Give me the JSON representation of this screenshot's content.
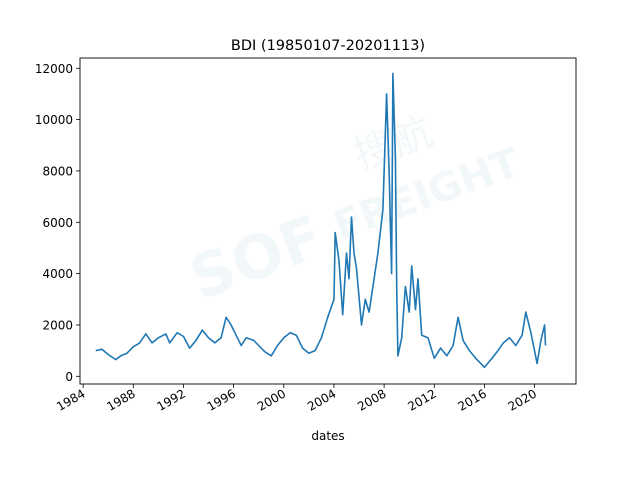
{
  "chart_data": {
    "type": "line",
    "title": "BDI (19850107-20201113)",
    "xlabel": "dates",
    "ylabel": "",
    "xlim": [
      1983.75,
      2023.3
    ],
    "ylim": [
      -300,
      12400
    ],
    "x_ticks": [
      1984,
      1988,
      1992,
      1996,
      2000,
      2004,
      2008,
      2012,
      2016,
      2020
    ],
    "x_tick_labels": [
      "1984",
      "1988",
      "1992",
      "1996",
      "2000",
      "2004",
      "2008",
      "2012",
      "2016",
      "2020"
    ],
    "y_ticks": [
      0,
      2000,
      4000,
      6000,
      8000,
      10000,
      12000
    ],
    "y_tick_labels": [
      "0",
      "2000",
      "4000",
      "6000",
      "8000",
      "10000",
      "12000"
    ],
    "grid": false,
    "color": "#1f77b4",
    "watermark": "SOF 搜航 FREIGHT",
    "series": [
      {
        "x": [
          1985.0,
          1985.5,
          1986.0,
          1986.6,
          1987.0,
          1987.5,
          1988.0,
          1988.5,
          1989.0,
          1989.5,
          1990.0,
          1990.6,
          1990.9,
          1991.5,
          1992.0,
          1992.5,
          1993.0,
          1993.5,
          1994.0,
          1994.5,
          1995.0,
          1995.4,
          1995.8,
          1996.2,
          1996.6,
          1997.0,
          1997.6,
          1998.0,
          1998.5,
          1999.0,
          1999.5,
          2000.0,
          2000.5,
          2001.0,
          2001.5,
          2002.0,
          2002.5,
          2003.0,
          2003.5,
          2004.0,
          2004.1,
          2004.4,
          2004.7,
          2005.0,
          2005.2,
          2005.4,
          2005.6,
          2005.8,
          2006.2,
          2006.5,
          2006.8,
          2007.2,
          2007.5,
          2007.9,
          2008.2,
          2008.4,
          2008.6,
          2008.7,
          2008.9,
          2009.0,
          2009.1,
          2009.4,
          2009.7,
          2010.0,
          2010.2,
          2010.5,
          2010.7,
          2011.0,
          2011.5,
          2012.0,
          2012.5,
          2013.0,
          2013.5,
          2013.9,
          2014.3,
          2014.8,
          2015.3,
          2016.0,
          2016.6,
          2017.0,
          2017.5,
          2018.0,
          2018.5,
          2019.0,
          2019.3,
          2019.7,
          2020.2,
          2020.5,
          2020.8,
          2020.87
        ],
        "values": [
          1000,
          1050,
          850,
          650,
          800,
          900,
          1150,
          1300,
          1650,
          1300,
          1500,
          1650,
          1300,
          1700,
          1550,
          1100,
          1400,
          1800,
          1500,
          1300,
          1500,
          2300,
          2000,
          1600,
          1200,
          1500,
          1400,
          1200,
          950,
          800,
          1200,
          1500,
          1700,
          1600,
          1100,
          900,
          1000,
          1500,
          2300,
          3000,
          5600,
          4500,
          2400,
          4800,
          3800,
          6200,
          4800,
          4200,
          2000,
          3000,
          2500,
          3800,
          4800,
          6500,
          11000,
          8000,
          4000,
          11800,
          8500,
          3500,
          800,
          1500,
          3500,
          2500,
          4300,
          2600,
          3800,
          1600,
          1500,
          700,
          1100,
          800,
          1200,
          2300,
          1400,
          1000,
          700,
          350,
          700,
          950,
          1300,
          1500,
          1200,
          1600,
          2500,
          1700,
          500,
          1400,
          2000,
          1200
        ]
      }
    ]
  }
}
